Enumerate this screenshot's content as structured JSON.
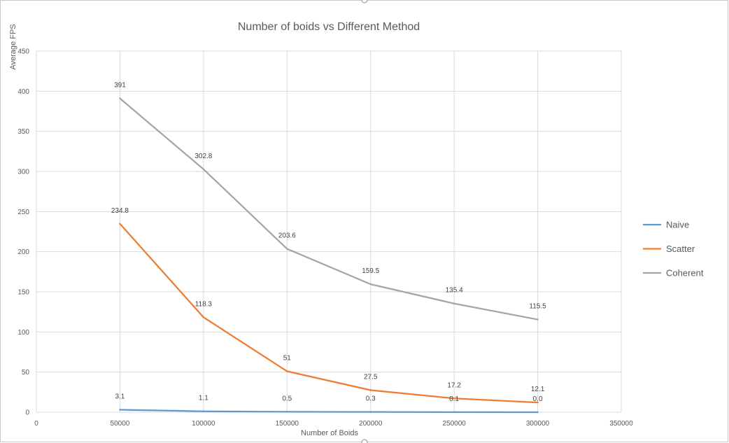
{
  "chart_data": {
    "type": "line",
    "title": "Number of boids vs Different Method",
    "xlabel": "Number of Boids",
    "ylabel": "Average FPS",
    "xlim": [
      0,
      350000
    ],
    "ylim": [
      0,
      450
    ],
    "x_ticks": [
      0,
      50000,
      100000,
      150000,
      200000,
      250000,
      300000,
      350000
    ],
    "y_ticks": [
      0,
      50,
      100,
      150,
      200,
      250,
      300,
      350,
      400,
      450
    ],
    "grid": true,
    "legend_position": "right",
    "x": [
      50000,
      100000,
      150000,
      200000,
      250000,
      300000
    ],
    "series": [
      {
        "name": "Naive",
        "color": "#5b9bd5",
        "values": [
          3.1,
          1.1,
          0.5,
          0.3,
          0.1,
          0.0
        ],
        "labels": [
          "3.1",
          "1.1",
          "0.5",
          "0.3",
          "0.1",
          "0.0"
        ]
      },
      {
        "name": "Scatter",
        "color": "#ed7d31",
        "values": [
          234.8,
          118.3,
          51,
          27.5,
          17.2,
          12.1
        ],
        "labels": [
          "234.8",
          "118.3",
          "51",
          "27.5",
          "17.2",
          "12.1"
        ]
      },
      {
        "name": "Coherent",
        "color": "#a5a5a5",
        "values": [
          391,
          302.8,
          203.6,
          159.5,
          135.4,
          115.5
        ],
        "labels": [
          "391",
          "302.8",
          "203.6",
          "159.5",
          "135.4",
          "115.5"
        ]
      }
    ]
  }
}
